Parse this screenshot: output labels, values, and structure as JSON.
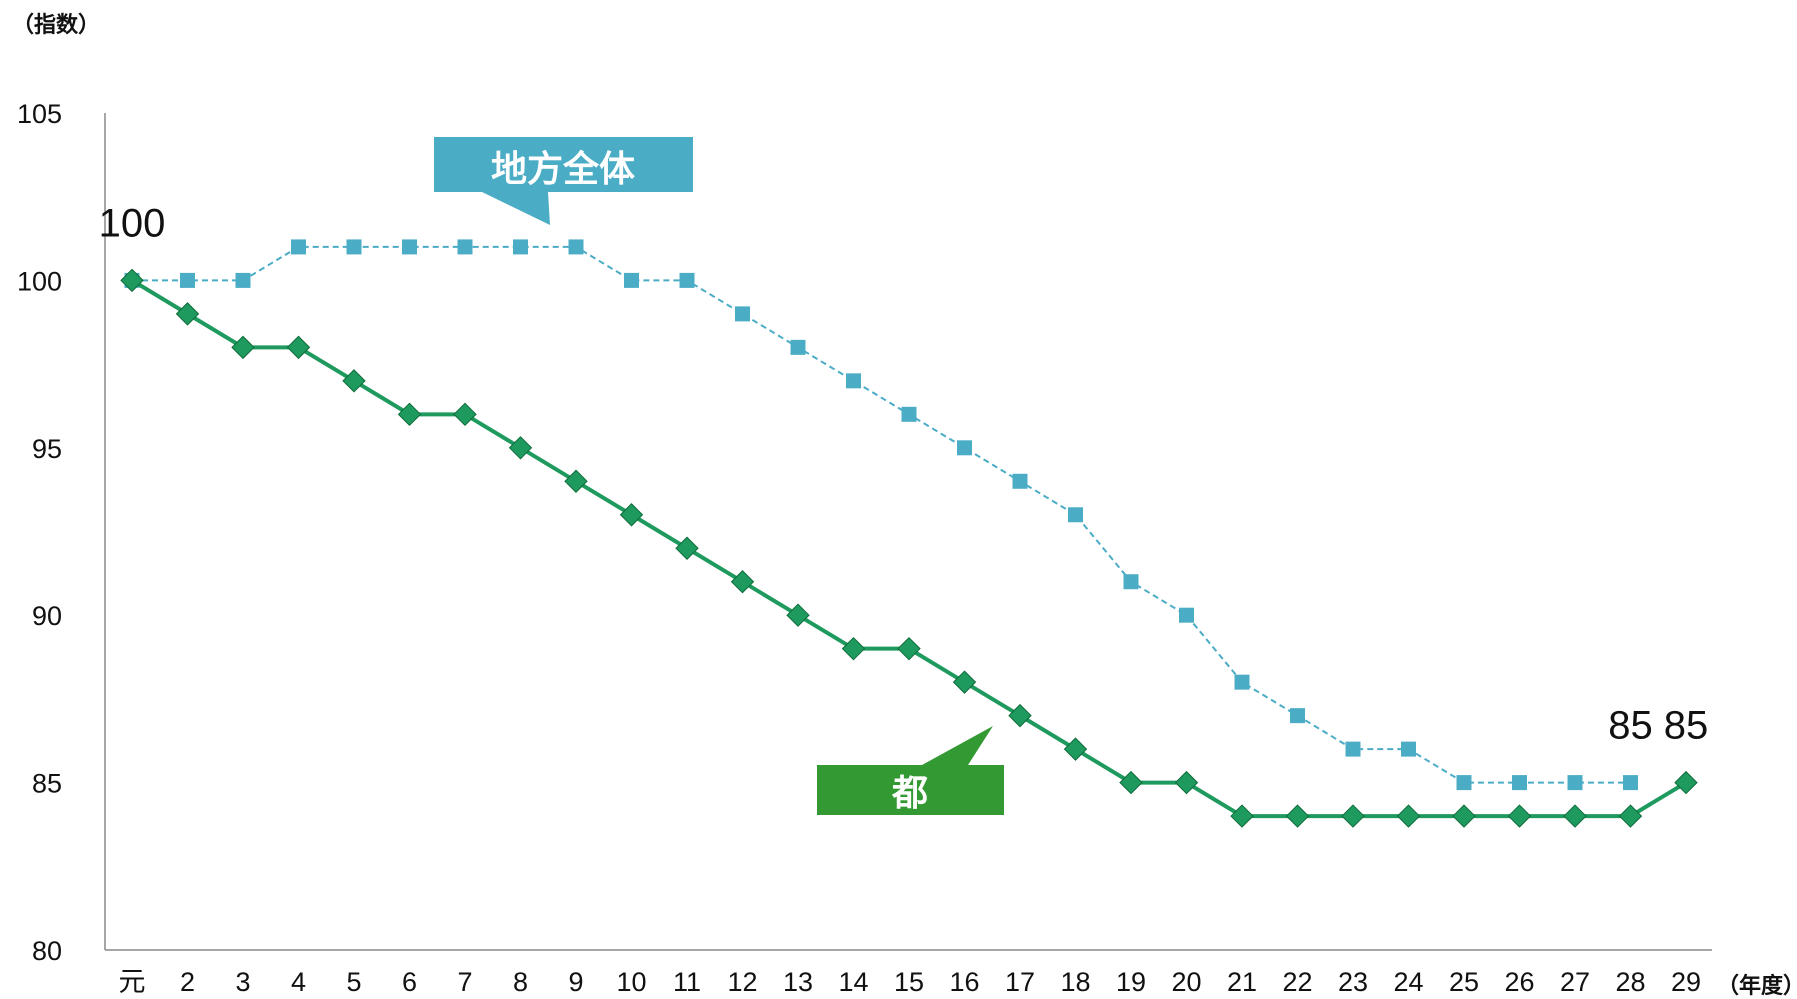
{
  "chart_data": {
    "type": "line",
    "ylabel": "（指数）",
    "xlabel": "（年度）",
    "ylim": [
      80,
      105
    ],
    "yticks": [
      80,
      85,
      90,
      95,
      100,
      105
    ],
    "categories": [
      "元",
      "2",
      "3",
      "4",
      "5",
      "6",
      "7",
      "8",
      "9",
      "10",
      "11",
      "12",
      "13",
      "14",
      "15",
      "16",
      "17",
      "18",
      "19",
      "20",
      "21",
      "22",
      "23",
      "24",
      "25",
      "26",
      "27",
      "28",
      "29"
    ],
    "series": [
      {
        "name": "地方全体",
        "color": "#4bacc6",
        "line_style": "dashed",
        "marker": "square",
        "values": [
          100,
          100,
          100,
          101,
          101,
          101,
          101,
          101,
          101,
          100,
          100,
          99,
          98,
          97,
          96,
          95,
          94,
          93,
          91,
          90,
          88,
          87,
          86,
          86,
          85,
          85,
          85,
          85,
          null
        ]
      },
      {
        "name": "都",
        "color": "#1e9a5e",
        "line_style": "solid",
        "marker": "diamond",
        "values": [
          100,
          99,
          98,
          98,
          97,
          96,
          96,
          95,
          94,
          93,
          92,
          91,
          90,
          89,
          89,
          88,
          87,
          86,
          85,
          85,
          84,
          84,
          84,
          84,
          84,
          84,
          84,
          84,
          85
        ]
      }
    ],
    "annotations": [
      {
        "text": "100",
        "category_index": 0,
        "value": 100
      },
      {
        "text": "85",
        "category_index": 27,
        "value": 85
      },
      {
        "text": "85",
        "category_index": 28,
        "value": 85
      }
    ],
    "callouts": [
      {
        "text": "地方全体",
        "color": "#4bacc6"
      },
      {
        "text": "都",
        "color": "#339933"
      }
    ]
  }
}
